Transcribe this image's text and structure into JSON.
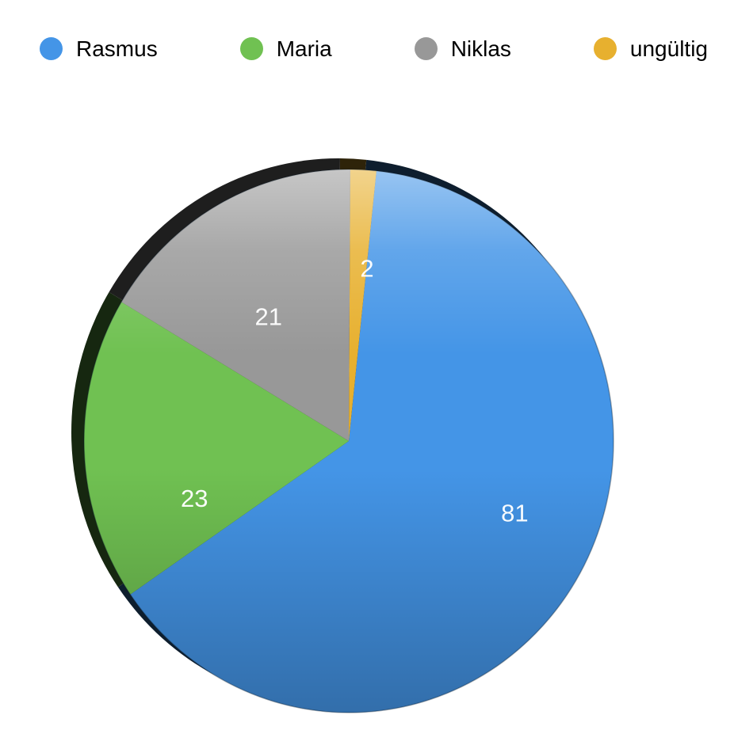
{
  "chart_data": {
    "type": "pie",
    "style": "3d",
    "legend_position": "top",
    "labels": [
      "Rasmus",
      "Maria",
      "Niklas",
      "ungültig"
    ],
    "values": [
      81,
      23,
      21,
      2
    ],
    "colors": [
      "#4495E7",
      "#70C152",
      "#989898",
      "#E7B02F"
    ],
    "data_labels": [
      "81",
      "23",
      "21",
      "2"
    ],
    "data_label_color": "#FFFFFF",
    "background": "#FFFFFF"
  },
  "legend": {
    "items": [
      {
        "label": "Rasmus",
        "color": "#4495E7"
      },
      {
        "label": "Maria",
        "color": "#70C152"
      },
      {
        "label": "Niklas",
        "color": "#989898"
      },
      {
        "label": "ungültig",
        "color": "#E7B02F"
      }
    ]
  }
}
